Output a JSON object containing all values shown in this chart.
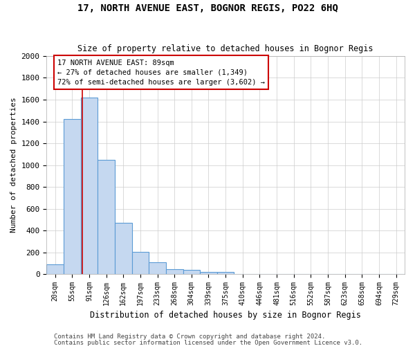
{
  "title": "17, NORTH AVENUE EAST, BOGNOR REGIS, PO22 6HQ",
  "subtitle": "Size of property relative to detached houses in Bognor Regis",
  "xlabel": "Distribution of detached houses by size in Bognor Regis",
  "ylabel": "Number of detached properties",
  "footer_line1": "Contains HM Land Registry data © Crown copyright and database right 2024.",
  "footer_line2": "Contains public sector information licensed under the Open Government Licence v3.0.",
  "bins": [
    "20sqm",
    "55sqm",
    "91sqm",
    "126sqm",
    "162sqm",
    "197sqm",
    "233sqm",
    "268sqm",
    "304sqm",
    "339sqm",
    "375sqm",
    "410sqm",
    "446sqm",
    "481sqm",
    "516sqm",
    "552sqm",
    "587sqm",
    "623sqm",
    "658sqm",
    "694sqm",
    "729sqm"
  ],
  "values": [
    90,
    1420,
    1620,
    1050,
    470,
    205,
    110,
    45,
    40,
    20,
    20,
    0,
    0,
    0,
    0,
    0,
    0,
    0,
    0,
    0,
    0
  ],
  "bar_color": "#c5d8f0",
  "bar_edge_color": "#5b9bd5",
  "property_bin_index": 1.58,
  "annotation_line1": "17 NORTH AVENUE EAST: 89sqm",
  "annotation_line2": "← 27% of detached houses are smaller (1,349)",
  "annotation_line3": "72% of semi-detached houses are larger (3,602) →",
  "annotation_box_color": "#ffffff",
  "annotation_box_edge": "#cc0000",
  "vline_color": "#cc0000",
  "ylim": [
    0,
    2000
  ],
  "yticks": [
    0,
    200,
    400,
    600,
    800,
    1000,
    1200,
    1400,
    1600,
    1800,
    2000
  ],
  "background_color": "#ffffff",
  "grid_color": "#cccccc"
}
